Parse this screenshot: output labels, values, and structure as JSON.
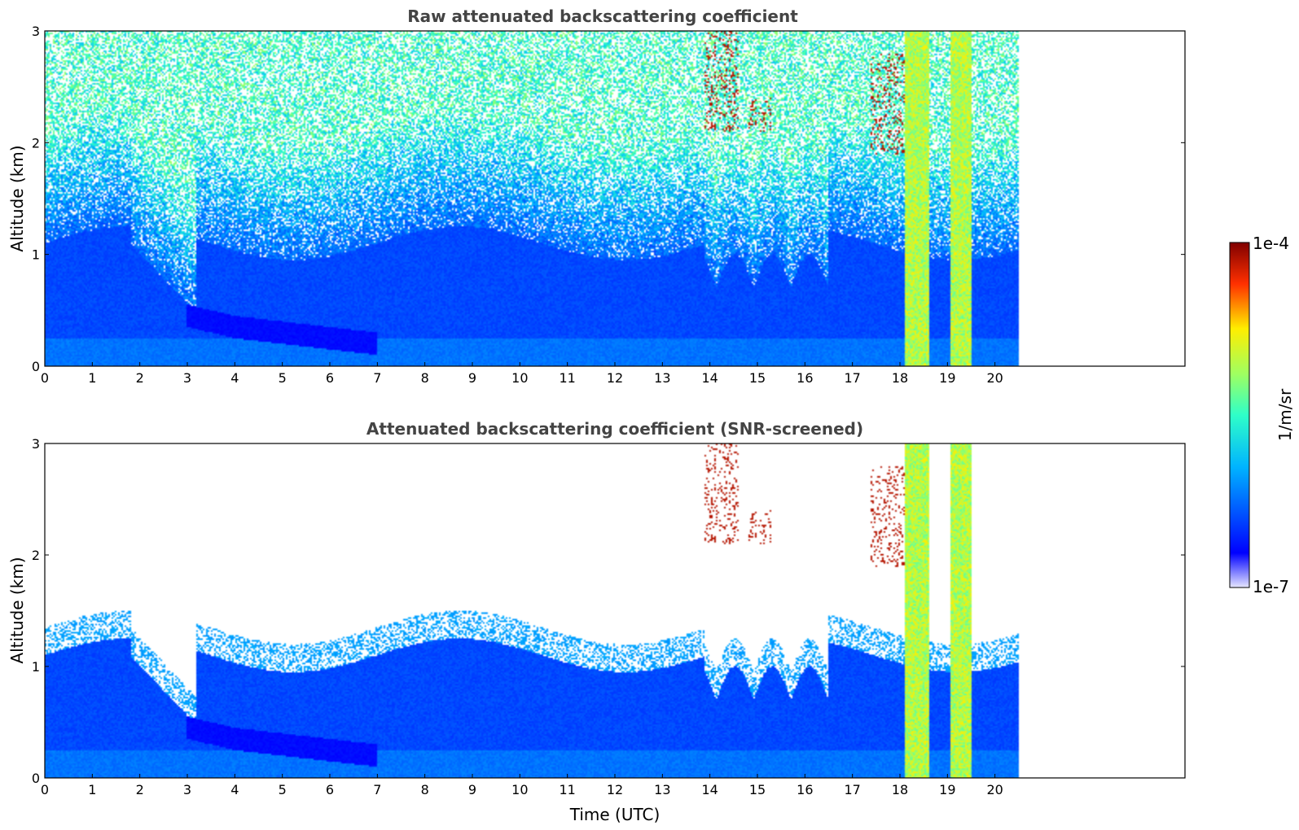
{
  "chart_data": [
    {
      "type": "heatmap",
      "title": "Raw attenuated backscattering coefficient",
      "xlabel": "",
      "ylabel": "Altitude (km)",
      "xlim": [
        0,
        24
      ],
      "ylim": [
        0,
        3
      ],
      "xticks": [
        "0",
        "1",
        "2",
        "3",
        "4",
        "5",
        "6",
        "7",
        "8",
        "9",
        "10",
        "11",
        "12",
        "13",
        "14",
        "15",
        "16",
        "17",
        "18",
        "19",
        "20"
      ],
      "yticks": [
        "0",
        "1",
        "2",
        "3"
      ],
      "data_end_time": 20.5,
      "screened": false,
      "features": {
        "aerosol_layer_top_km": 1.1,
        "dense_layer": [
          {
            "t": 3,
            "z": 0.45
          },
          {
            "t": 4,
            "z": 0.35
          },
          {
            "t": 5,
            "z": 0.3
          },
          {
            "t": 6,
            "z": 0.25
          },
          {
            "t": 7,
            "z": 0.2
          }
        ],
        "strong_columns": [
          {
            "start": 18.1,
            "end": 18.6
          },
          {
            "start": 19.05,
            "end": 19.5
          }
        ],
        "high_clouds": [
          {
            "t0": 13.9,
            "t1": 14.6,
            "z0": 2.1,
            "z1": 3.0
          },
          {
            "t0": 14.8,
            "t1": 15.3,
            "z0": 2.1,
            "z1": 2.4
          },
          {
            "t0": 17.4,
            "t1": 18.1,
            "z0": 1.9,
            "z1": 2.8
          }
        ]
      }
    },
    {
      "type": "heatmap",
      "title": "Attenuated backscattering coefficient (SNR-screened)",
      "xlabel": "Time (UTC)",
      "ylabel": "Altitude (km)",
      "xlim": [
        0,
        24
      ],
      "ylim": [
        0,
        3
      ],
      "xticks": [
        "0",
        "1",
        "2",
        "3",
        "4",
        "5",
        "6",
        "7",
        "8",
        "9",
        "10",
        "11",
        "12",
        "13",
        "14",
        "15",
        "16",
        "17",
        "18",
        "19",
        "20"
      ],
      "yticks": [
        "0",
        "1",
        "2",
        "3"
      ],
      "data_end_time": 20.5,
      "screened": true
    }
  ],
  "colorbar": {
    "label": "1/m/sr",
    "max_label": "1e-4",
    "min_label": "1e-7",
    "colormap": "jet",
    "min_color": "#e6e6ff",
    "max_color": "#800000"
  }
}
